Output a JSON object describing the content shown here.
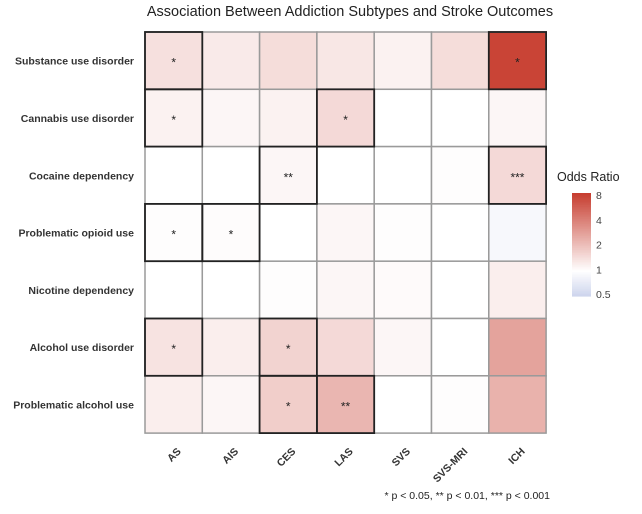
{
  "chart_data": {
    "type": "heatmap",
    "title": "Association Between Addiction Subtypes and Stroke Outcomes",
    "x_categories": [
      "AS",
      "AIS",
      "CES",
      "LAS",
      "SVS",
      "SVS-MRI",
      "ICH"
    ],
    "y_categories": [
      "Substance use disorder",
      "Cannabis use disorder",
      "Cocaine dependency",
      "Problematic opioid use",
      "Nicotine dependency",
      "Alcohol use disorder",
      "Problematic alcohol use"
    ],
    "values": [
      [
        1.4,
        1.25,
        1.45,
        1.3,
        1.15,
        1.45,
        7.5
      ],
      [
        1.15,
        1.1,
        1.15,
        1.5,
        1.0,
        1.0,
        1.1
      ],
      [
        1.0,
        1.0,
        1.1,
        1.0,
        1.0,
        1.02,
        1.5
      ],
      [
        1.02,
        1.03,
        1.0,
        1.1,
        1.02,
        1.0,
        0.9
      ],
      [
        1.0,
        1.0,
        1.02,
        1.1,
        1.05,
        1.0,
        1.2
      ],
      [
        1.35,
        1.2,
        1.6,
        1.5,
        1.1,
        1.0,
        2.7
      ],
      [
        1.2,
        1.1,
        1.7,
        2.2,
        1.0,
        1.02,
        2.3
      ]
    ],
    "significance": [
      [
        "*",
        "",
        "",
        "",
        "",
        "",
        "*"
      ],
      [
        "*",
        "",
        "",
        "*",
        "",
        "",
        ""
      ],
      [
        "",
        "",
        "**",
        "",
        "",
        "",
        "***"
      ],
      [
        "*",
        "*",
        "",
        "",
        "",
        "",
        ""
      ],
      [
        "",
        "",
        "",
        "",
        "",
        "",
        ""
      ],
      [
        "*",
        "",
        "*",
        "",
        "",
        "",
        ""
      ],
      [
        "",
        "",
        "*",
        "**",
        "",
        "",
        ""
      ]
    ],
    "legend": {
      "title": "Odds Ratio",
      "ticks": [
        "8",
        "4",
        "2",
        "1",
        "0.5"
      ],
      "scale": "log",
      "range": [
        0.5,
        8
      ],
      "placement": "right",
      "colors": {
        "high": "#c73e30",
        "mid": "#ffffff",
        "low": "#ccd3ec"
      }
    },
    "footnote": "* p < 0.05, ** p < 0.01, *** p < 0.001"
  }
}
